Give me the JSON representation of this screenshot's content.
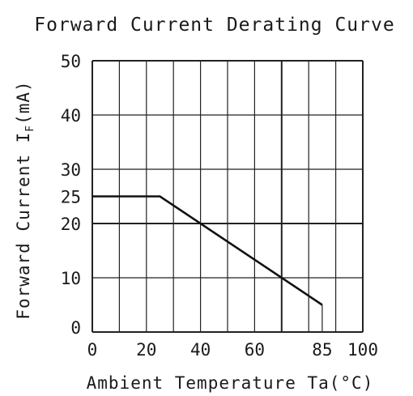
{
  "chart_data": {
    "type": "line",
    "title": "Forward Current Derating Curve",
    "xlabel": "Ambient Temperature Ta(°C)",
    "ylabel": "Forward Current I",
    "ylabel_subscript": "F",
    "ylabel_unit": "(mA)",
    "xlim": [
      0,
      100
    ],
    "ylim": [
      0,
      50
    ],
    "x_ticks": [
      "0",
      "20",
      "40",
      "60",
      "85",
      "100"
    ],
    "x_tick_values": [
      0,
      20,
      40,
      60,
      85,
      100
    ],
    "y_ticks": [
      "0",
      "10",
      "20",
      "25",
      "30",
      "40",
      "50"
    ],
    "y_tick_values": [
      0,
      10,
      20,
      25,
      30,
      40,
      50
    ],
    "x_gridlines": [
      0,
      10,
      20,
      30,
      40,
      50,
      60,
      70,
      80,
      90,
      100
    ],
    "y_gridlines": [
      0,
      10,
      20,
      30,
      40,
      50
    ],
    "major_y_gridlines": [
      20
    ],
    "major_x_gridlines": [
      70
    ],
    "grid": true,
    "series": [
      {
        "points": [
          {
            "x": 0,
            "y": 25
          },
          {
            "x": 25,
            "y": 25
          },
          {
            "x": 85,
            "y": 5
          }
        ]
      }
    ],
    "colors": {
      "line": "#111111",
      "grid": "#222222",
      "text": "#1a1a1a"
    }
  }
}
